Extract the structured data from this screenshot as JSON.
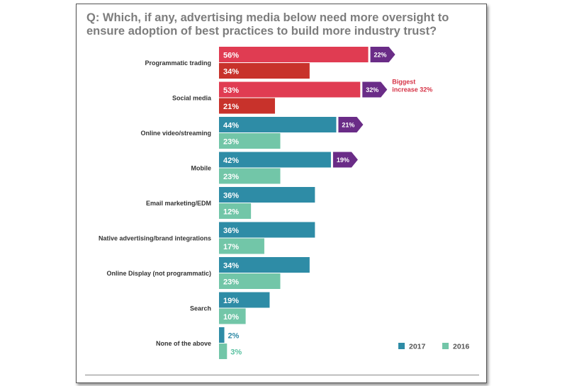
{
  "title": "Q: Which, if any, advertising media below need more oversight to ensure adoption of best practices to build more industry trust?",
  "note": [
    "Biggest",
    "increase 32%"
  ],
  "colors": {
    "2017": "#2e8ca6",
    "2016": "#72c6a8",
    "highlight_2017": "#e03c52",
    "highlight_2016": "#c8322b",
    "increase": "#6a2c87"
  },
  "chart_data": {
    "type": "bar",
    "orientation": "horizontal",
    "title": "Q: Which, if any, advertising media below need more oversight to ensure adoption of best practices to build more industry trust?",
    "categories": [
      "Programmatic trading",
      "Social media",
      "Online video/streaming",
      "Mobile",
      "Email marketing/EDM",
      "Native advertising/brand integrations",
      "Online Display (not programmatic)",
      "Search",
      "None of the above"
    ],
    "series": [
      {
        "name": "2017",
        "values": [
          56,
          53,
          44,
          42,
          36,
          36,
          34,
          19,
          2
        ]
      },
      {
        "name": "2016",
        "values": [
          34,
          21,
          23,
          23,
          12,
          17,
          23,
          10,
          3
        ]
      }
    ],
    "increase_badges": [
      "22%",
      "32%",
      "21%",
      "19%",
      null,
      null,
      null,
      null,
      null
    ],
    "highlight_categories": [
      "Programmatic trading",
      "Social media"
    ],
    "value_unit": "%",
    "xlim": [
      0,
      60
    ],
    "grid": false,
    "legend": "bottom-right"
  }
}
